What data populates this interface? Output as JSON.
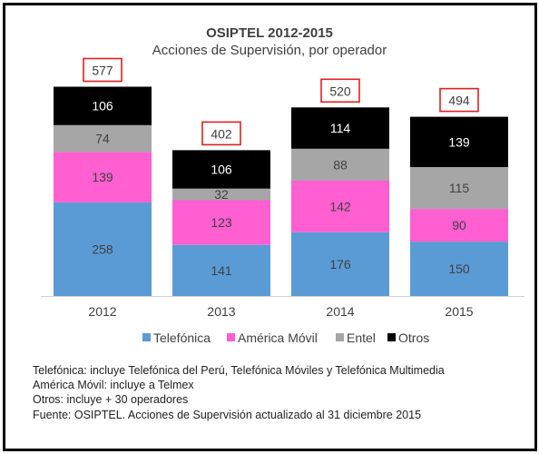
{
  "chart_data": {
    "type": "bar",
    "stacked": true,
    "title": "OSIPTEL 2012-2015",
    "subtitle": "Acciones de Supervisión, por operador",
    "categories": [
      "2012",
      "2013",
      "2014",
      "2015"
    ],
    "series": [
      {
        "name": "Telefónica",
        "color": "#5b9bd5",
        "values": [
          258,
          141,
          176,
          150
        ]
      },
      {
        "name": "América Móvil",
        "color": "#ff5fd0",
        "values": [
          139,
          123,
          142,
          90
        ]
      },
      {
        "name": "Entel",
        "color": "#a6a6a6",
        "values": [
          74,
          32,
          88,
          115
        ]
      },
      {
        "name": "Otros",
        "color": "#000000",
        "values": [
          106,
          106,
          114,
          139
        ]
      }
    ],
    "totals": [
      577,
      402,
      520,
      494
    ],
    "ylim": [
      0,
      600
    ],
    "grid": false,
    "legend_position": "bottom"
  },
  "notes": [
    "Telefónica:  incluye Telefónica  del Perú, Telefónica  Móviles  y Telefónica  Multimedia",
    "América Móvil:  incluye a Telmex",
    "Otros: incluye + 30 operadores",
    "Fuente: OSIPTEL.  Acciones de Supervisión  actualizado al 31 diciembre 2015"
  ]
}
